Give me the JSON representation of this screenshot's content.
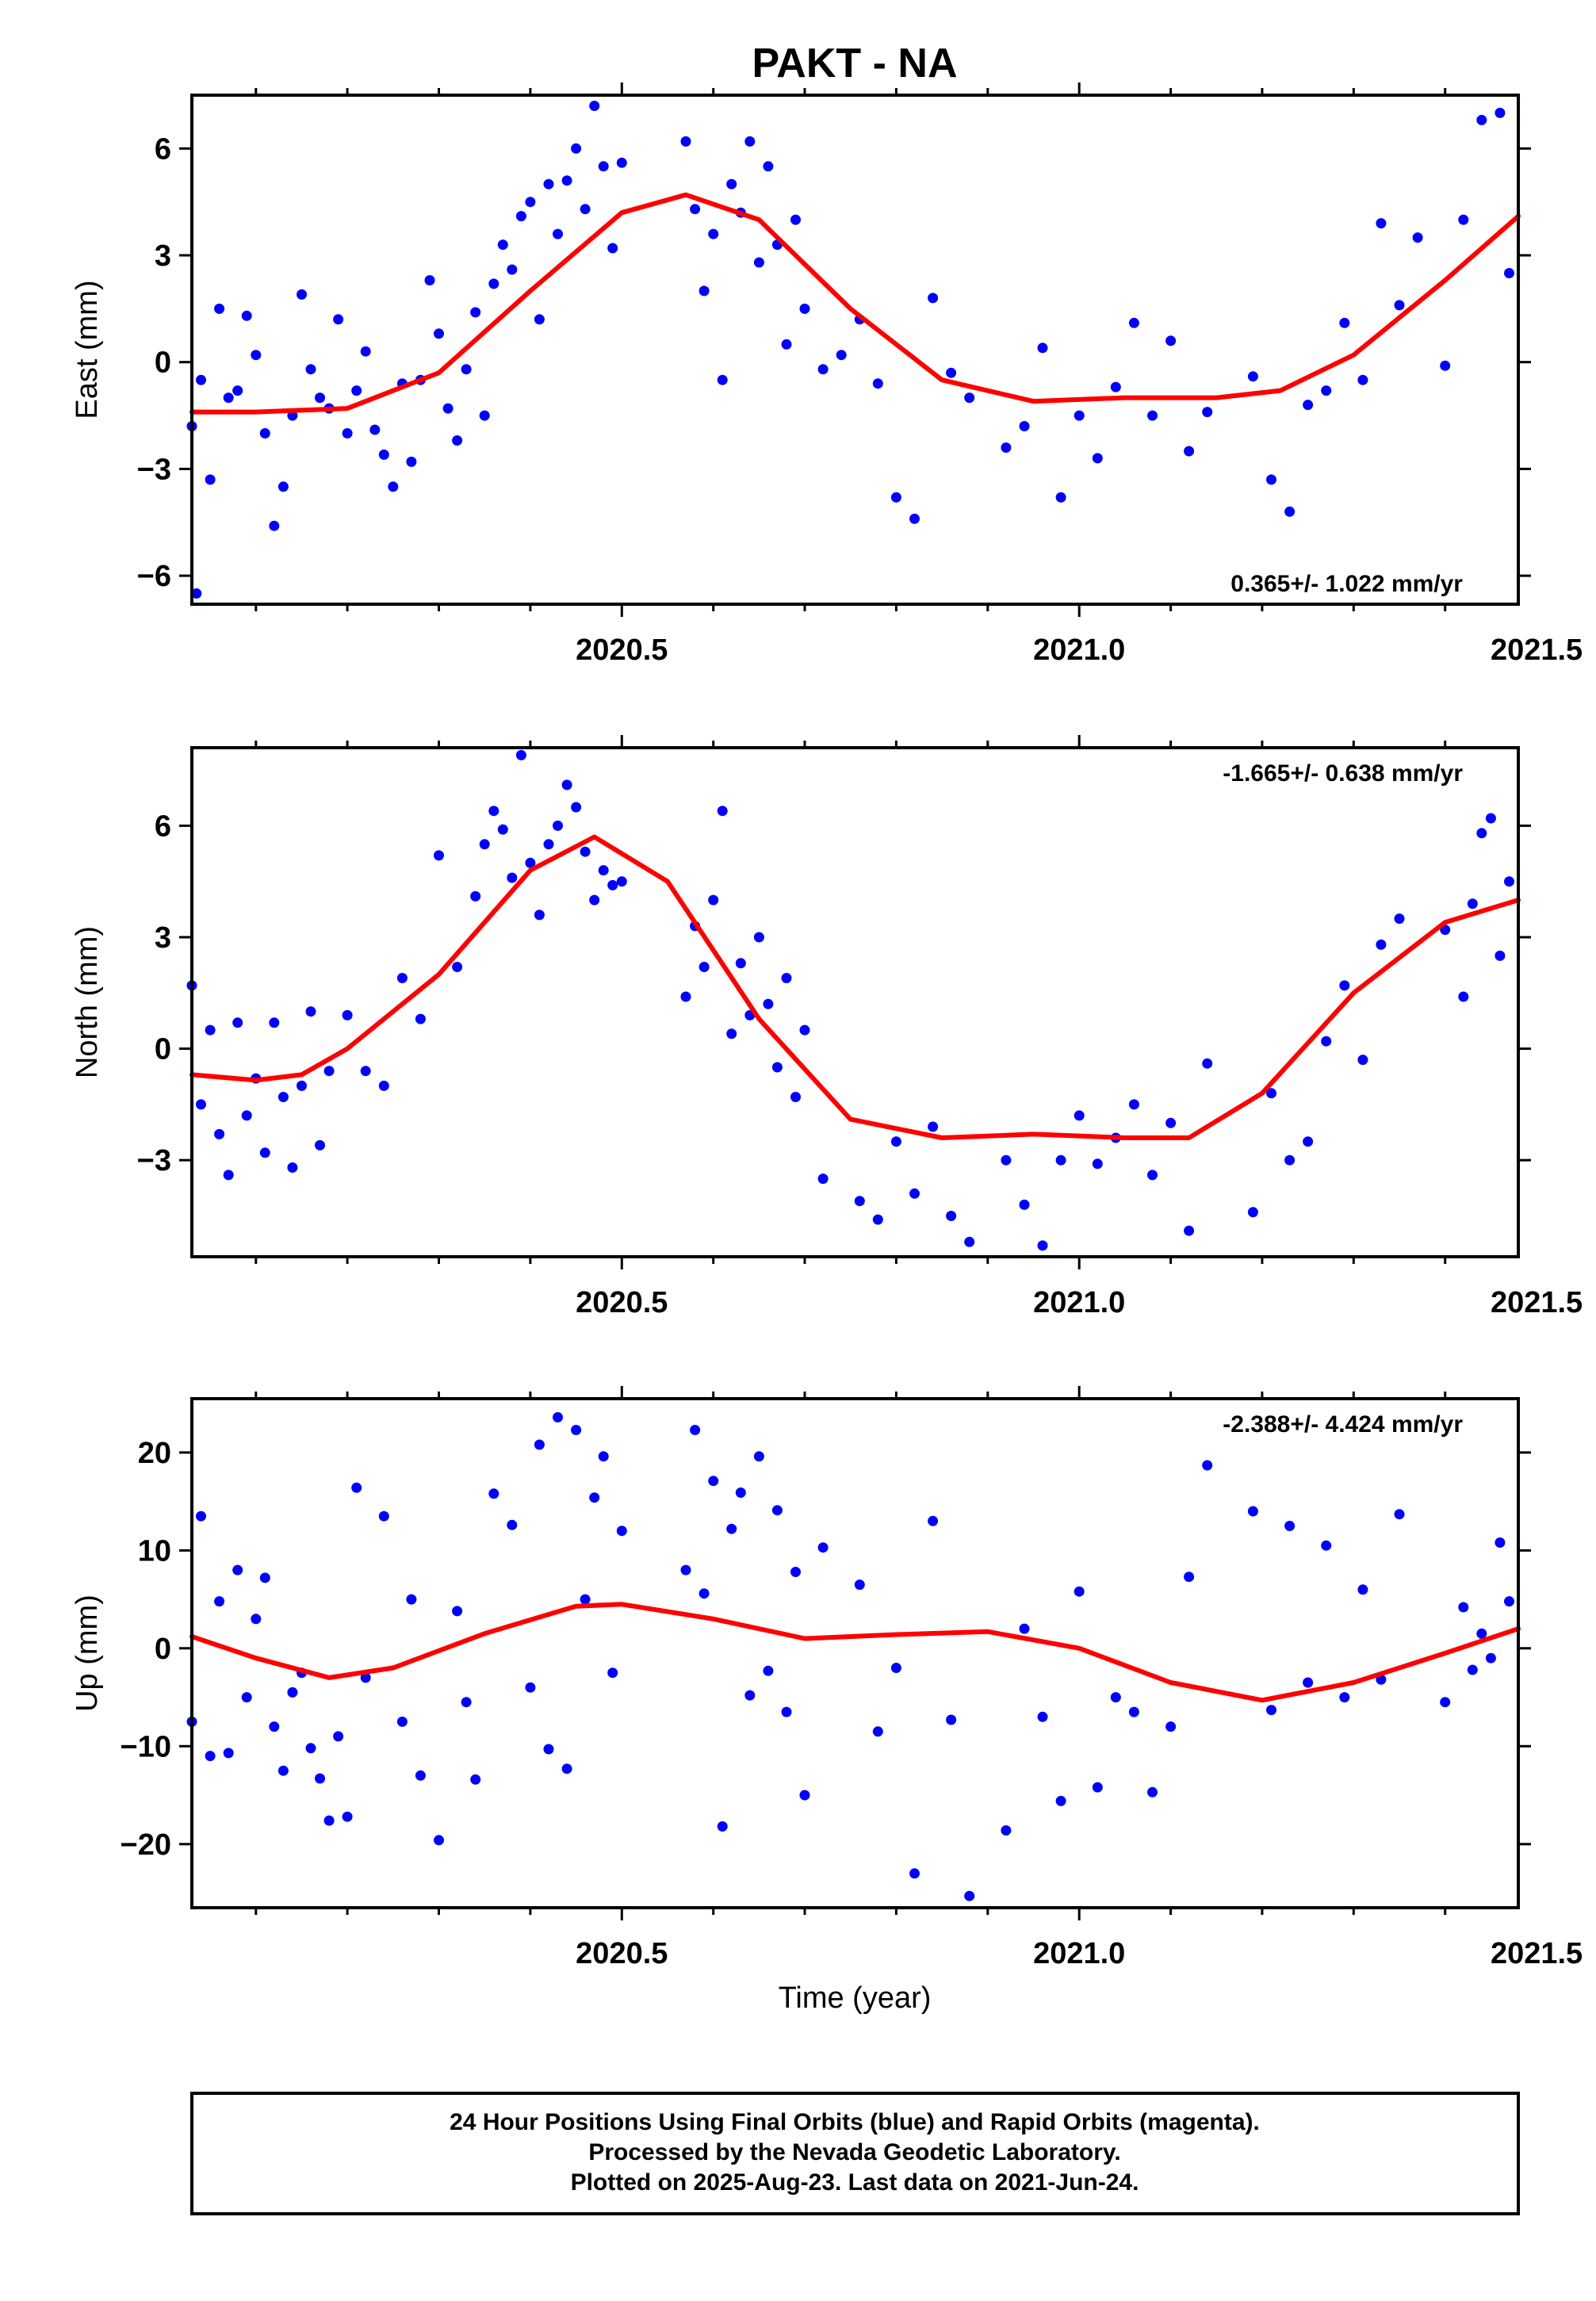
{
  "title": "PAKT - NA",
  "footer": {
    "line1": "24 Hour Positions Using Final Orbits (blue) and Rapid Orbits (magenta).",
    "line2": "Processed by the Nevada Geodetic Laboratory.",
    "line3": "Plotted on 2025-Aug-23. Last data on 2021-Jun-24."
  },
  "colors": {
    "points": "#0000ff",
    "fit": "#ff0000",
    "frame": "#000000"
  },
  "chart_data": [
    {
      "type": "scatter",
      "ylabel": "East (mm)",
      "xlabel": "",
      "rate": "0.365+/- 1.022 mm/yr",
      "rate_position": "bottom-right",
      "xlim": [
        2020.03,
        2021.48
      ],
      "ylim": [
        -6.8,
        7.5
      ],
      "xticks": [
        2020.5,
        2021.0,
        2021.5
      ],
      "xtick_labels": [
        "2020.5",
        "2021.0",
        "2021.5"
      ],
      "yticks": [
        -6,
        -3,
        0,
        3,
        6
      ],
      "ytick_labels": [
        "−6",
        "−3",
        "0",
        "3",
        "6"
      ],
      "fit": {
        "x": [
          2020.03,
          2020.1,
          2020.2,
          2020.3,
          2020.4,
          2020.5,
          2020.57,
          2020.65,
          2020.75,
          2020.85,
          2020.95,
          2021.05,
          2021.15,
          2021.22,
          2021.3,
          2021.4,
          2021.48
        ],
        "y": [
          -1.4,
          -1.4,
          -1.3,
          -0.3,
          2.0,
          4.2,
          4.7,
          4.0,
          1.5,
          -0.5,
          -1.1,
          -1.0,
          -1.0,
          -0.8,
          0.2,
          2.3,
          4.1
        ]
      },
      "points": {
        "x": [
          2020.03,
          2020.035,
          2020.04,
          2020.05,
          2020.06,
          2020.07,
          2020.08,
          2020.09,
          2020.1,
          2020.11,
          2020.12,
          2020.13,
          2020.14,
          2020.15,
          2020.16,
          2020.17,
          2020.18,
          2020.19,
          2020.2,
          2020.21,
          2020.22,
          2020.23,
          2020.24,
          2020.25,
          2020.26,
          2020.27,
          2020.28,
          2020.29,
          2020.3,
          2020.31,
          2020.32,
          2020.33,
          2020.34,
          2020.35,
          2020.36,
          2020.37,
          2020.38,
          2020.39,
          2020.4,
          2020.41,
          2020.42,
          2020.43,
          2020.44,
          2020.45,
          2020.46,
          2020.47,
          2020.48,
          2020.49,
          2020.5,
          2020.57,
          2020.58,
          2020.59,
          2020.6,
          2020.61,
          2020.62,
          2020.63,
          2020.64,
          2020.65,
          2020.66,
          2020.67,
          2020.68,
          2020.69,
          2020.7,
          2020.72,
          2020.74,
          2020.76,
          2020.78,
          2020.8,
          2020.82,
          2020.84,
          2020.86,
          2020.88,
          2020.92,
          2020.94,
          2020.96,
          2020.98,
          2021.0,
          2021.02,
          2021.04,
          2021.06,
          2021.08,
          2021.1,
          2021.12,
          2021.14,
          2021.19,
          2021.21,
          2021.23,
          2021.25,
          2021.27,
          2021.29,
          2021.31,
          2021.33,
          2021.35,
          2021.37,
          2021.4,
          2021.42,
          2021.44,
          2021.46,
          2021.47
        ],
        "y": [
          -1.8,
          -6.5,
          -0.5,
          -3.3,
          1.5,
          -1.0,
          -0.8,
          1.3,
          0.2,
          -2.0,
          -4.6,
          -3.5,
          -1.5,
          1.9,
          -0.2,
          -1.0,
          -1.3,
          1.2,
          -2.0,
          -0.8,
          0.3,
          -1.9,
          -2.6,
          -3.5,
          -0.6,
          -2.8,
          -0.5,
          2.3,
          0.8,
          -1.3,
          -2.2,
          -0.2,
          1.4,
          -1.5,
          2.2,
          3.3,
          2.6,
          4.1,
          4.5,
          1.2,
          5.0,
          3.6,
          5.1,
          6.0,
          4.3,
          7.2,
          5.5,
          3.2,
          5.6,
          6.2,
          4.3,
          2.0,
          3.6,
          -0.5,
          5.0,
          4.2,
          6.2,
          2.8,
          5.5,
          3.3,
          0.5,
          4.0,
          1.5,
          -0.2,
          0.2,
          1.2,
          -0.6,
          -3.8,
          -4.4,
          1.8,
          -0.3,
          -1.0,
          -2.4,
          -1.8,
          0.4,
          -3.8,
          -1.5,
          -2.7,
          -0.7,
          1.1,
          -1.5,
          0.6,
          -2.5,
          -1.4,
          -0.4,
          -3.3,
          -4.2,
          -1.2,
          -0.8,
          1.1,
          -0.5,
          3.9,
          1.6,
          3.5,
          -0.1,
          4.0,
          6.8,
          7.0,
          2.5
        ]
      }
    },
    {
      "type": "scatter",
      "ylabel": "North (mm)",
      "xlabel": "",
      "rate": "-1.665+/- 0.638 mm/yr",
      "rate_position": "top-right",
      "xlim": [
        2020.03,
        2021.48
      ],
      "ylim": [
        -5.6,
        8.1
      ],
      "xticks": [
        2020.5,
        2021.0,
        2021.5
      ],
      "xtick_labels": [
        "2020.5",
        "2021.0",
        "2021.5"
      ],
      "yticks": [
        -3,
        0,
        3,
        6
      ],
      "ytick_labels": [
        "−3",
        "0",
        "3",
        "6"
      ],
      "fit": {
        "x": [
          2020.03,
          2020.1,
          2020.15,
          2020.2,
          2020.3,
          2020.4,
          2020.47,
          2020.55,
          2020.65,
          2020.75,
          2020.85,
          2020.95,
          2021.05,
          2021.12,
          2021.2,
          2021.3,
          2021.4,
          2021.48
        ],
        "y": [
          -0.7,
          -0.85,
          -0.7,
          0.0,
          2.0,
          4.8,
          5.7,
          4.5,
          0.8,
          -1.9,
          -2.4,
          -2.3,
          -2.4,
          -2.4,
          -1.2,
          1.5,
          3.4,
          4.0
        ]
      },
      "points": {
        "x": [
          2020.03,
          2020.04,
          2020.05,
          2020.06,
          2020.07,
          2020.08,
          2020.09,
          2020.1,
          2020.11,
          2020.12,
          2020.13,
          2020.14,
          2020.15,
          2020.16,
          2020.17,
          2020.18,
          2020.2,
          2020.22,
          2020.24,
          2020.26,
          2020.28,
          2020.3,
          2020.32,
          2020.34,
          2020.35,
          2020.36,
          2020.37,
          2020.38,
          2020.39,
          2020.4,
          2020.41,
          2020.42,
          2020.43,
          2020.44,
          2020.45,
          2020.46,
          2020.47,
          2020.48,
          2020.49,
          2020.5,
          2020.57,
          2020.58,
          2020.59,
          2020.6,
          2020.61,
          2020.62,
          2020.63,
          2020.64,
          2020.65,
          2020.66,
          2020.67,
          2020.68,
          2020.69,
          2020.7,
          2020.72,
          2020.76,
          2020.78,
          2020.8,
          2020.82,
          2020.84,
          2020.86,
          2020.88,
          2020.92,
          2020.94,
          2020.96,
          2020.98,
          2021.0,
          2021.02,
          2021.04,
          2021.06,
          2021.08,
          2021.1,
          2021.12,
          2021.14,
          2021.19,
          2021.21,
          2021.23,
          2021.25,
          2021.27,
          2021.29,
          2021.31,
          2021.33,
          2021.35,
          2021.4,
          2021.42,
          2021.43,
          2021.44,
          2021.45,
          2021.46,
          2021.47
        ],
        "y": [
          1.7,
          -1.5,
          0.5,
          -2.3,
          -3.4,
          0.7,
          -1.8,
          -0.8,
          -2.8,
          0.7,
          -1.3,
          -3.2,
          -1.0,
          1.0,
          -2.6,
          -0.6,
          0.9,
          -0.6,
          -1.0,
          1.9,
          0.8,
          5.2,
          2.2,
          4.1,
          5.5,
          6.4,
          5.9,
          4.6,
          7.9,
          5.0,
          3.6,
          5.5,
          6.0,
          7.1,
          6.5,
          5.3,
          4.0,
          4.8,
          4.4,
          4.5,
          1.4,
          3.3,
          2.2,
          4.0,
          6.4,
          0.4,
          2.3,
          0.9,
          3.0,
          1.2,
          -0.5,
          1.9,
          -1.3,
          0.5,
          -3.5,
          -4.1,
          -4.6,
          -2.5,
          -3.9,
          -2.1,
          -4.5,
          -5.2,
          -3.0,
          -4.2,
          -5.3,
          -3.0,
          -1.8,
          -3.1,
          -2.4,
          -1.5,
          -3.4,
          -2.0,
          -4.9,
          -0.4,
          -4.4,
          -1.2,
          -3.0,
          -2.5,
          0.2,
          1.7,
          -0.3,
          2.8,
          3.5,
          3.2,
          1.4,
          3.9,
          5.8,
          6.2,
          2.5,
          4.5
        ]
      }
    },
    {
      "type": "scatter",
      "ylabel": "Up (mm)",
      "xlabel": "Time (year)",
      "rate": "-2.388+/- 4.424 mm/yr",
      "rate_position": "top-right",
      "xlim": [
        2020.03,
        2021.48
      ],
      "ylim": [
        -26.5,
        25.5
      ],
      "xticks": [
        2020.5,
        2021.0,
        2021.5
      ],
      "xtick_labels": [
        "2020.5",
        "2021.0",
        "2021.5"
      ],
      "yticks": [
        -20,
        -10,
        0,
        10,
        20
      ],
      "ytick_labels": [
        "−20",
        "−10",
        "0",
        "10",
        "20"
      ],
      "fit": {
        "x": [
          2020.03,
          2020.1,
          2020.18,
          2020.25,
          2020.35,
          2020.45,
          2020.5,
          2020.6,
          2020.7,
          2020.8,
          2020.9,
          2021.0,
          2021.1,
          2021.2,
          2021.3,
          2021.4,
          2021.48
        ],
        "y": [
          1.2,
          -1.0,
          -3.0,
          -2.0,
          1.5,
          4.3,
          4.5,
          3.0,
          1.0,
          1.4,
          1.7,
          0.0,
          -3.5,
          -5.3,
          -3.5,
          -0.5,
          2.0
        ]
      },
      "points": {
        "x": [
          2020.03,
          2020.04,
          2020.05,
          2020.06,
          2020.07,
          2020.08,
          2020.09,
          2020.1,
          2020.11,
          2020.12,
          2020.13,
          2020.14,
          2020.15,
          2020.16,
          2020.17,
          2020.18,
          2020.19,
          2020.2,
          2020.21,
          2020.22,
          2020.24,
          2020.26,
          2020.27,
          2020.28,
          2020.3,
          2020.32,
          2020.33,
          2020.34,
          2020.36,
          2020.38,
          2020.4,
          2020.41,
          2020.42,
          2020.43,
          2020.44,
          2020.45,
          2020.46,
          2020.47,
          2020.48,
          2020.49,
          2020.5,
          2020.57,
          2020.58,
          2020.59,
          2020.6,
          2020.61,
          2020.62,
          2020.63,
          2020.64,
          2020.65,
          2020.66,
          2020.67,
          2020.68,
          2020.69,
          2020.7,
          2020.72,
          2020.76,
          2020.78,
          2020.8,
          2020.82,
          2020.84,
          2020.86,
          2020.88,
          2020.92,
          2020.94,
          2020.96,
          2020.98,
          2021.0,
          2021.02,
          2021.04,
          2021.06,
          2021.08,
          2021.1,
          2021.12,
          2021.14,
          2021.19,
          2021.21,
          2021.23,
          2021.25,
          2021.27,
          2021.29,
          2021.31,
          2021.33,
          2021.35,
          2021.4,
          2021.42,
          2021.43,
          2021.44,
          2021.45,
          2021.46,
          2021.47
        ],
        "y": [
          -7.5,
          13.5,
          -11.0,
          4.8,
          -10.7,
          8.0,
          -5.0,
          3.0,
          7.2,
          -8.0,
          -12.5,
          -4.5,
          -2.5,
          -10.2,
          -13.3,
          -17.6,
          -9.0,
          -17.2,
          16.4,
          -3.0,
          13.5,
          -7.5,
          5.0,
          -13.0,
          -19.6,
          3.8,
          -5.5,
          -13.4,
          15.8,
          12.6,
          -4.0,
          20.8,
          -10.3,
          23.6,
          -12.3,
          22.3,
          5.0,
          15.4,
          19.6,
          -2.5,
          12.0,
          8.0,
          22.3,
          5.6,
          17.1,
          -18.2,
          12.2,
          15.9,
          -4.8,
          19.6,
          -2.3,
          14.1,
          -6.5,
          7.8,
          -15.0,
          10.3,
          6.5,
          -8.5,
          -2.0,
          -23.0,
          13.0,
          -7.3,
          -25.3,
          -18.6,
          2.0,
          -7.0,
          -15.6,
          5.8,
          -14.2,
          -5.0,
          -6.5,
          -14.7,
          -8.0,
          7.3,
          18.7,
          14.0,
          -6.3,
          12.5,
          -3.5,
          10.5,
          -5.0,
          6.0,
          -3.2,
          13.7,
          -5.5,
          4.2,
          -2.2,
          1.5,
          -1.0,
          10.8,
          4.8
        ]
      }
    }
  ]
}
